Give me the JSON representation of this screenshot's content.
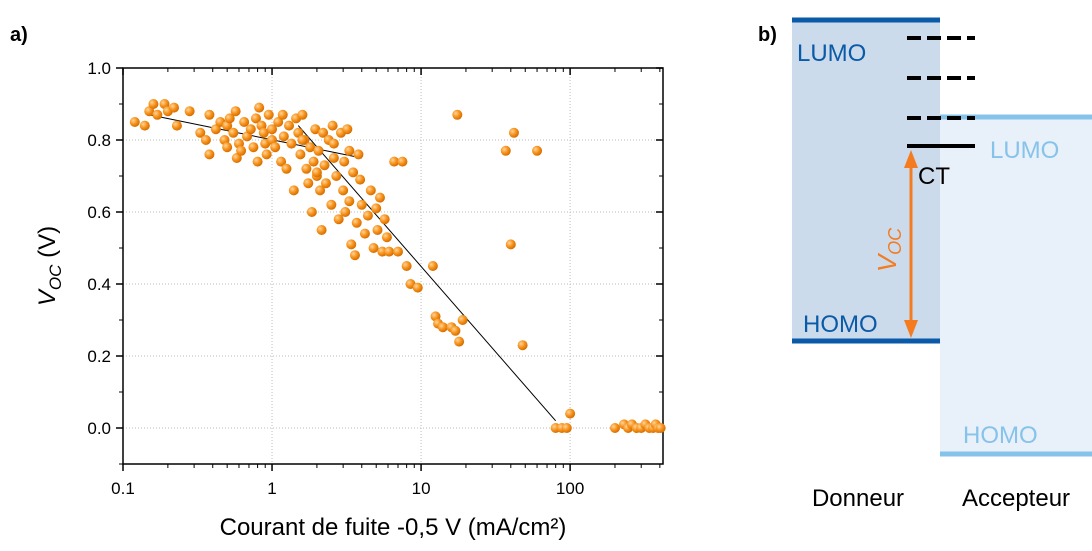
{
  "panel_a": {
    "label": "a)",
    "chart_data": {
      "type": "scatter",
      "xscale": "log",
      "xlabel": "Courant de fuite -0,5 V (mA/cm²)",
      "ylabel": {
        "main": "V",
        "sub": "OC",
        "unit": " (V)"
      },
      "xlim": [
        0.1,
        420
      ],
      "ylim": [
        -0.1,
        1.0
      ],
      "xticks": [
        0.1,
        1,
        10,
        100
      ],
      "xtick_labels": [
        "0.1",
        "1",
        "10",
        "100"
      ],
      "yticks": [
        0.0,
        0.2,
        0.4,
        0.6,
        0.8,
        1.0
      ],
      "ytick_labels": [
        "0.0",
        "0.2",
        "0.4",
        "0.6",
        "0.8",
        "1.0"
      ],
      "grid": true,
      "marker_color": "#f7941d",
      "points": [
        [
          0.12,
          0.85
        ],
        [
          0.14,
          0.84
        ],
        [
          0.15,
          0.88
        ],
        [
          0.16,
          0.9
        ],
        [
          0.17,
          0.87
        ],
        [
          0.19,
          0.9
        ],
        [
          0.2,
          0.88
        ],
        [
          0.22,
          0.89
        ],
        [
          0.23,
          0.84
        ],
        [
          0.28,
          0.88
        ],
        [
          0.33,
          0.82
        ],
        [
          0.36,
          0.8
        ],
        [
          0.38,
          0.87
        ],
        [
          0.38,
          0.76
        ],
        [
          0.42,
          0.83
        ],
        [
          0.45,
          0.85
        ],
        [
          0.48,
          0.8
        ],
        [
          0.5,
          0.84
        ],
        [
          0.5,
          0.78
        ],
        [
          0.52,
          0.86
        ],
        [
          0.55,
          0.82
        ],
        [
          0.57,
          0.88
        ],
        [
          0.58,
          0.75
        ],
        [
          0.6,
          0.79
        ],
        [
          0.62,
          0.77
        ],
        [
          0.65,
          0.85
        ],
        [
          0.68,
          0.81
        ],
        [
          0.72,
          0.83
        ],
        [
          0.75,
          0.78
        ],
        [
          0.78,
          0.86
        ],
        [
          0.8,
          0.74
        ],
        [
          0.82,
          0.89
        ],
        [
          0.85,
          0.84
        ],
        [
          0.88,
          0.82
        ],
        [
          0.9,
          0.79
        ],
        [
          0.92,
          0.76
        ],
        [
          0.95,
          0.87
        ],
        [
          1.0,
          0.83
        ],
        [
          1.0,
          0.8
        ],
        [
          1.05,
          0.78
        ],
        [
          1.1,
          0.85
        ],
        [
          1.15,
          0.74
        ],
        [
          1.18,
          0.87
        ],
        [
          1.2,
          0.81
        ],
        [
          1.25,
          0.72
        ],
        [
          1.3,
          0.84
        ],
        [
          1.35,
          0.79
        ],
        [
          1.4,
          0.66
        ],
        [
          1.45,
          0.86
        ],
        [
          1.5,
          0.82
        ],
        [
          1.55,
          0.76
        ],
        [
          1.6,
          0.87
        ],
        [
          1.65,
          0.8
        ],
        [
          1.7,
          0.72
        ],
        [
          1.75,
          0.68
        ],
        [
          1.8,
          0.78
        ],
        [
          1.85,
          0.6
        ],
        [
          1.9,
          0.74
        ],
        [
          1.95,
          0.83
        ],
        [
          2.0,
          0.7
        ],
        [
          2.05,
          0.77
        ],
        [
          2.1,
          0.66
        ],
        [
          2.15,
          0.55
        ],
        [
          2.2,
          0.82
        ],
        [
          2.25,
          0.73
        ],
        [
          2.3,
          0.68
        ],
        [
          2.4,
          0.8
        ],
        [
          2.5,
          0.62
        ],
        [
          2.55,
          0.84
        ],
        [
          2.6,
          0.75
        ],
        [
          2.7,
          0.7
        ],
        [
          2.8,
          0.58
        ],
        [
          2.9,
          0.82
        ],
        [
          3.0,
          0.66
        ],
        [
          3.05,
          0.74
        ],
        [
          3.1,
          0.6
        ],
        [
          3.2,
          0.83
        ],
        [
          3.3,
          0.63
        ],
        [
          3.4,
          0.51
        ],
        [
          3.5,
          0.71
        ],
        [
          3.6,
          0.48
        ],
        [
          3.7,
          0.57
        ],
        [
          3.8,
          0.76
        ],
        [
          3.9,
          0.69
        ],
        [
          4.0,
          0.62
        ],
        [
          4.2,
          0.54
        ],
        [
          4.4,
          0.59
        ],
        [
          4.6,
          0.66
        ],
        [
          4.8,
          0.5
        ],
        [
          5.0,
          0.61
        ],
        [
          5.1,
          0.55
        ],
        [
          5.3,
          0.64
        ],
        [
          5.5,
          0.49
        ],
        [
          5.7,
          0.58
        ],
        [
          5.9,
          0.53
        ],
        [
          6.1,
          0.49
        ],
        [
          6.6,
          0.74
        ],
        [
          7.0,
          0.49
        ],
        [
          7.5,
          0.74
        ],
        [
          8.0,
          0.45
        ],
        [
          8.5,
          0.4
        ],
        [
          9.5,
          0.39
        ],
        [
          12.0,
          0.45
        ],
        [
          12.5,
          0.31
        ],
        [
          13.0,
          0.29
        ],
        [
          14.0,
          0.28
        ],
        [
          16.0,
          0.28
        ],
        [
          17.0,
          0.27
        ],
        [
          18.0,
          0.24
        ],
        [
          19.0,
          0.3
        ],
        [
          17.5,
          0.87
        ],
        [
          37.0,
          0.77
        ],
        [
          40.0,
          0.51
        ],
        [
          42.0,
          0.82
        ],
        [
          48.0,
          0.23
        ],
        [
          60.0,
          0.77
        ],
        [
          80.0,
          0.0
        ],
        [
          88.0,
          0.0
        ],
        [
          95.0,
          0.0
        ],
        [
          100.0,
          0.04
        ],
        [
          200.0,
          0.0
        ],
        [
          230.0,
          0.01
        ],
        [
          245.0,
          0.0
        ],
        [
          260.0,
          0.01
        ],
        [
          280.0,
          0.0
        ],
        [
          300.0,
          0.0
        ],
        [
          320.0,
          0.01
        ],
        [
          340.0,
          0.0
        ],
        [
          360.0,
          0.0
        ],
        [
          375.0,
          0.01
        ],
        [
          390.0,
          0.0
        ],
        [
          405.0,
          0.0
        ],
        [
          2.0,
          0.71
        ],
        [
          1.6,
          0.8
        ],
        [
          2.6,
          0.79
        ],
        [
          3.3,
          0.77
        ]
      ],
      "fit_lines": [
        [
          [
            0.15,
            0.87
          ],
          [
            4.0,
            0.75
          ]
        ],
        [
          [
            1.5,
            0.84
          ],
          [
            80.0,
            0.02
          ]
        ]
      ]
    }
  },
  "panel_b": {
    "label": "b)",
    "donor": {
      "name": "Donneur",
      "lumo": "LUMO",
      "homo": "HOMO",
      "color": "#0a5aa8",
      "fill": "#cbdbeb"
    },
    "acceptor": {
      "name": "Accepteur",
      "lumo": "LUMO",
      "homo": "HOMO",
      "color": "#86c3ea",
      "fill": "#e8f0f9"
    },
    "ct_label": "CT",
    "voc_label": {
      "main": "V",
      "sub": "OC"
    },
    "arrow_color": "#f47b20"
  }
}
